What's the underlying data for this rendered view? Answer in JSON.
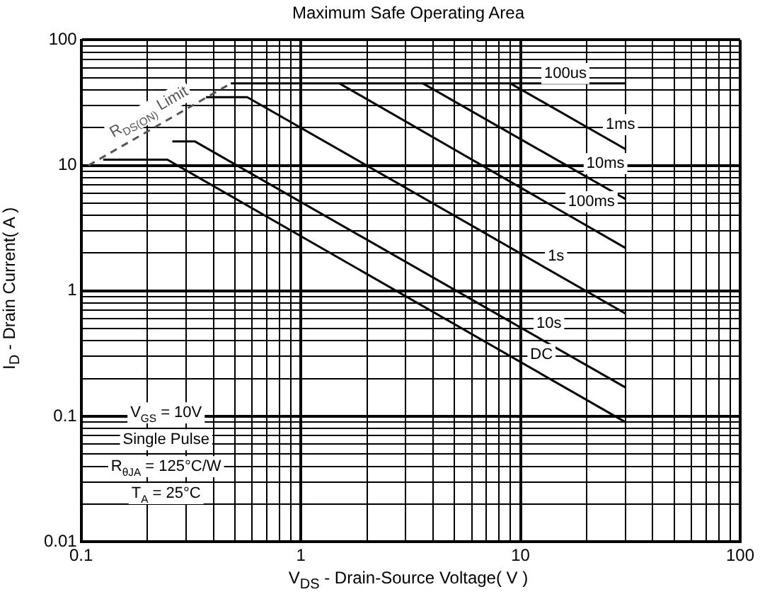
{
  "chart_data": {
    "type": "line",
    "title": "Maximum Safe Operating Area",
    "xlabel": "V$_{DS}$ - Drain-Source Voltage( V )",
    "ylabel": "I$_{D}$ - Drain Current( A )",
    "log": "xy",
    "grid": true,
    "legend": false,
    "marker": "none",
    "xlim": [
      0.1,
      100
    ],
    "ylim": [
      0.01,
      100
    ],
    "xticks": [
      0.1,
      {
        "value": 0.2,
        "label": null
      },
      {
        "value": 0.3,
        "label": null
      },
      {
        "value": 0.4,
        "label": null
      },
      {
        "value": 0.5,
        "label": null
      },
      {
        "value": 0.6,
        "label": null
      },
      {
        "value": 0.7,
        "label": null
      },
      {
        "value": 0.8,
        "label": null
      },
      {
        "value": 0.9,
        "label": null
      },
      1,
      {
        "value": 2,
        "label": null
      },
      {
        "value": 3,
        "label": null
      },
      {
        "value": 4,
        "label": null
      },
      {
        "value": 5,
        "label": null
      },
      {
        "value": 6,
        "label": null
      },
      {
        "value": 7,
        "label": null
      },
      {
        "value": 8,
        "label": null
      },
      {
        "value": 9,
        "label": null
      },
      10,
      {
        "value": 20,
        "label": null
      },
      {
        "value": 30,
        "label": null
      },
      {
        "value": 40,
        "label": null
      },
      {
        "value": 50,
        "label": null
      },
      {
        "value": 60,
        "label": null
      },
      {
        "value": 70,
        "label": null
      },
      {
        "value": 80,
        "label": null
      },
      {
        "value": 90,
        "label": null
      },
      100
    ],
    "yticks": [
      0.01,
      {
        "value": 0.02,
        "label": null
      },
      {
        "value": 0.03,
        "label": null
      },
      {
        "value": 0.04,
        "label": null
      },
      {
        "value": 0.05,
        "label": null
      },
      {
        "value": 0.06,
        "label": null
      },
      {
        "value": 0.07,
        "label": null
      },
      {
        "value": 0.08,
        "label": null
      },
      {
        "value": 0.09,
        "label": null
      },
      0.1,
      {
        "value": 0.2,
        "label": null
      },
      {
        "value": 0.3,
        "label": null
      },
      {
        "value": 0.4,
        "label": null
      },
      {
        "value": 0.5,
        "label": null
      },
      {
        "value": 0.6,
        "label": null
      },
      {
        "value": 0.7,
        "label": null
      },
      {
        "value": 0.8,
        "label": null
      },
      {
        "value": 0.9,
        "label": null
      },
      1,
      {
        "value": 2,
        "label": null
      },
      {
        "value": 3,
        "label": null
      },
      {
        "value": 4,
        "label": null
      },
      {
        "value": 5,
        "label": null
      },
      {
        "value": 6,
        "label": null
      },
      {
        "value": 7,
        "label": null
      },
      {
        "value": 8,
        "label": null
      },
      {
        "value": 9,
        "label": null
      },
      10,
      {
        "value": 20,
        "label": null
      },
      {
        "value": 30,
        "label": null
      },
      {
        "value": 40,
        "label": null
      },
      {
        "value": 50,
        "label": null
      },
      {
        "value": 60,
        "label": null
      },
      {
        "value": 70,
        "label": null
      },
      {
        "value": 80,
        "label": null
      },
      {
        "value": 90,
        "label": null
      },
      100
    ],
    "series": [
      {
        "name": "R$_{DS(ON)}$ Limit",
        "color": "#555555",
        "line_style": "dashed",
        "x": [
          0.108,
          0.48
        ],
        "values": [
          10,
          45
        ]
      },
      {
        "name": "100us",
        "color": "#000000",
        "x": [
          0.48,
          30
        ],
        "values": [
          45,
          45
        ]
      },
      {
        "name": "1ms",
        "color": "#000000",
        "x": [
          9,
          30
        ],
        "values": [
          45,
          13.5
        ]
      },
      {
        "name": "10ms",
        "color": "#000000",
        "x": [
          3.6,
          30
        ],
        "values": [
          45,
          5.4
        ]
      },
      {
        "name": "100ms",
        "color": "#000000",
        "x": [
          1.5,
          30
        ],
        "values": [
          45,
          2.2
        ]
      },
      {
        "name": "1s",
        "color": "#000000",
        "x": [
          0.37,
          0.57,
          30
        ],
        "values": [
          35,
          35,
          0.66
        ]
      },
      {
        "name": "10s",
        "color": "#000000",
        "x": [
          0.26,
          0.33,
          30
        ],
        "values": [
          15.5,
          15.5,
          0.17
        ]
      },
      {
        "name": "DC",
        "color": "#000000",
        "x": [
          0.126,
          0.247,
          30
        ],
        "values": [
          11.1,
          11.1,
          0.09
        ]
      }
    ],
    "annotations": [
      "V$_{GS}$ = 10V",
      "Single Pulse",
      "R$_{θJA}$ = 125°C/W",
      "T$_{A}$ = 25°C"
    ]
  }
}
